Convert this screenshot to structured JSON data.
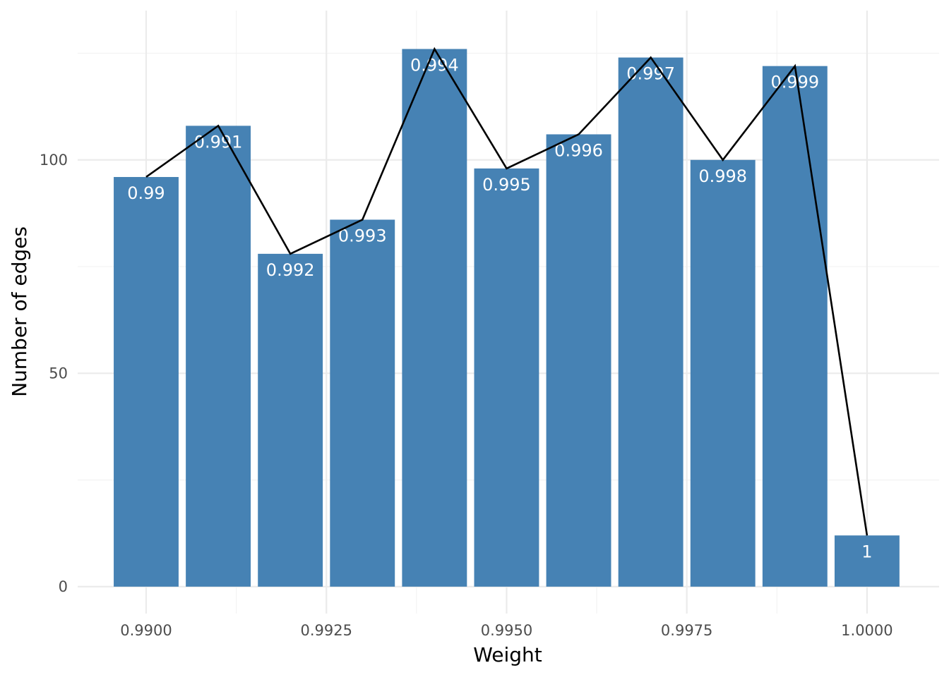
{
  "chart_data": {
    "type": "bar",
    "title": "",
    "xlabel": "Weight",
    "ylabel": "Number of edges",
    "x": [
      0.99,
      0.991,
      0.992,
      0.993,
      0.994,
      0.995,
      0.996,
      0.997,
      0.998,
      0.999,
      1.0
    ],
    "values": [
      96,
      108,
      78,
      86,
      126,
      98,
      106,
      124,
      100,
      122,
      12
    ],
    "bar_labels": [
      "0.99",
      "0.991",
      "0.992",
      "0.993",
      "0.994",
      "0.995",
      "0.996",
      "0.997",
      "0.998",
      "0.999",
      "1"
    ],
    "bar_width": 0.0009,
    "xlim": [
      0.98905,
      1.001
    ],
    "ylim": [
      -6.3,
      135
    ],
    "x_ticks": [
      0.99,
      0.9925,
      0.995,
      0.9975,
      1.0
    ],
    "x_tick_labels": [
      "0.9900",
      "0.9925",
      "0.9950",
      "0.9975",
      "1.0000"
    ],
    "x_minor_ticks": [
      0.99125,
      0.99375,
      0.99625,
      0.99875
    ],
    "y_ticks": [
      0,
      50,
      100
    ],
    "y_tick_labels": [
      "0",
      "50",
      "100"
    ],
    "y_minor_ticks": [
      25,
      75,
      125
    ],
    "overlay_line": "connects bar tops",
    "grid": true,
    "legend": "none",
    "colors": {
      "bar": "#4682b4",
      "line": "#000000",
      "label": "#ffffff",
      "grid_major": "#ebebeb",
      "grid_minor": "#f3f3f3",
      "tick_text": "#4d4d4d",
      "background": "#ffffff"
    }
  }
}
